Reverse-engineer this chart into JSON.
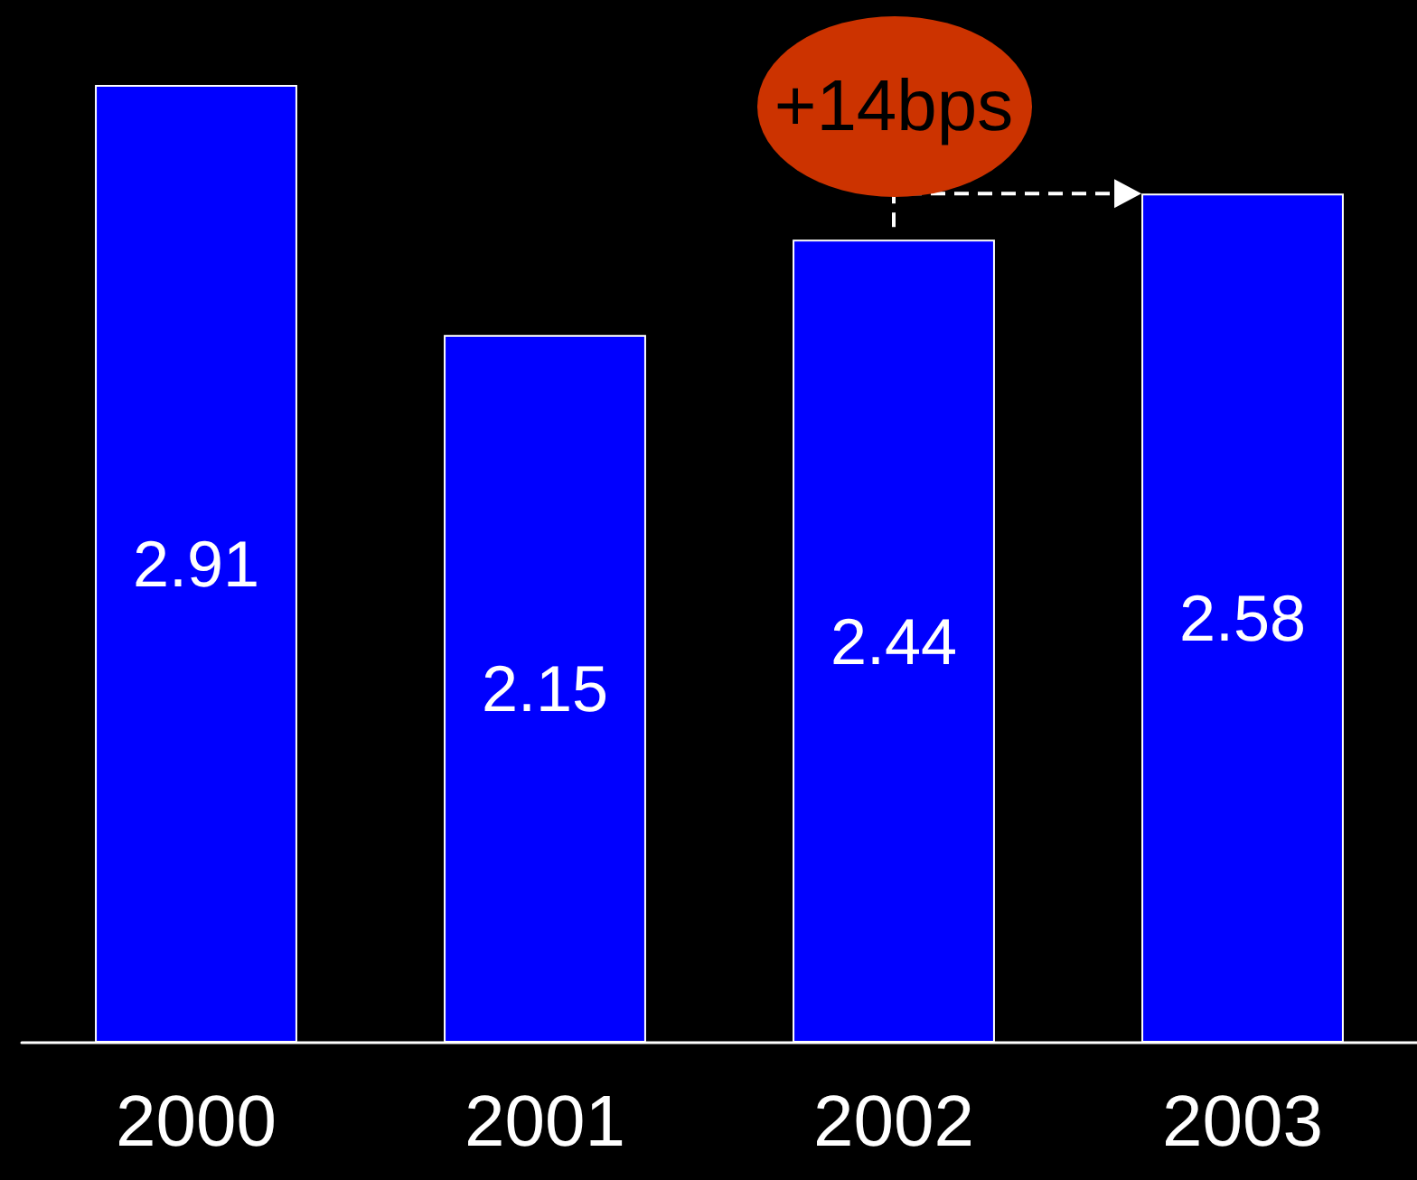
{
  "chart_data": {
    "type": "bar",
    "categories": [
      "2000",
      "2001",
      "2002",
      "2003"
    ],
    "values": [
      2.91,
      2.15,
      2.44,
      2.58
    ],
    "color": "#0000ff",
    "data_labels": true,
    "tick_labels": "x",
    "annotations": [
      "+14bps"
    ]
  }
}
